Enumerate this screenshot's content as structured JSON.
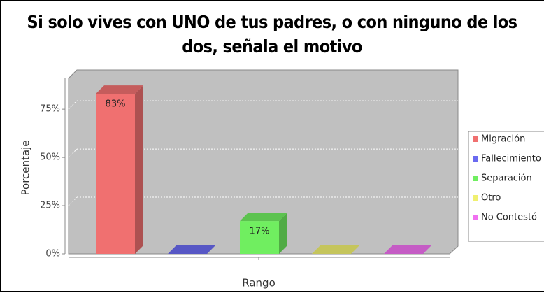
{
  "chart_data": {
    "type": "bar3d",
    "title": [
      "Si solo vives con UNO de tus padres, o con ninguno de los",
      "dos, señala el motivo"
    ],
    "x_label": "Rango",
    "y_label": "Porcentaje",
    "series": [
      {
        "name": "Migración",
        "color": "#f07070",
        "values": [
          83
        ],
        "value_labels": [
          "83%"
        ]
      },
      {
        "name": "Fallecimiento",
        "color": "#6a6af0",
        "values": [
          0
        ],
        "value_labels": [
          null
        ]
      },
      {
        "name": "Separación",
        "color": "#70ee60",
        "values": [
          17
        ],
        "value_labels": [
          "17%"
        ]
      },
      {
        "name": "Otro",
        "color": "#f0f070",
        "values": [
          0
        ],
        "value_labels": [
          null
        ]
      },
      {
        "name": "No Contestó",
        "color": "#f070f0",
        "values": [
          0
        ],
        "value_labels": [
          null
        ]
      }
    ],
    "ylim": [
      0,
      91
    ],
    "yticks": [
      {
        "value": 0,
        "label": "0%"
      },
      {
        "value": 25,
        "label": "25%"
      },
      {
        "value": 50,
        "label": "50%"
      },
      {
        "value": 75,
        "label": "75%"
      }
    ],
    "grid": true,
    "legend": "right"
  }
}
